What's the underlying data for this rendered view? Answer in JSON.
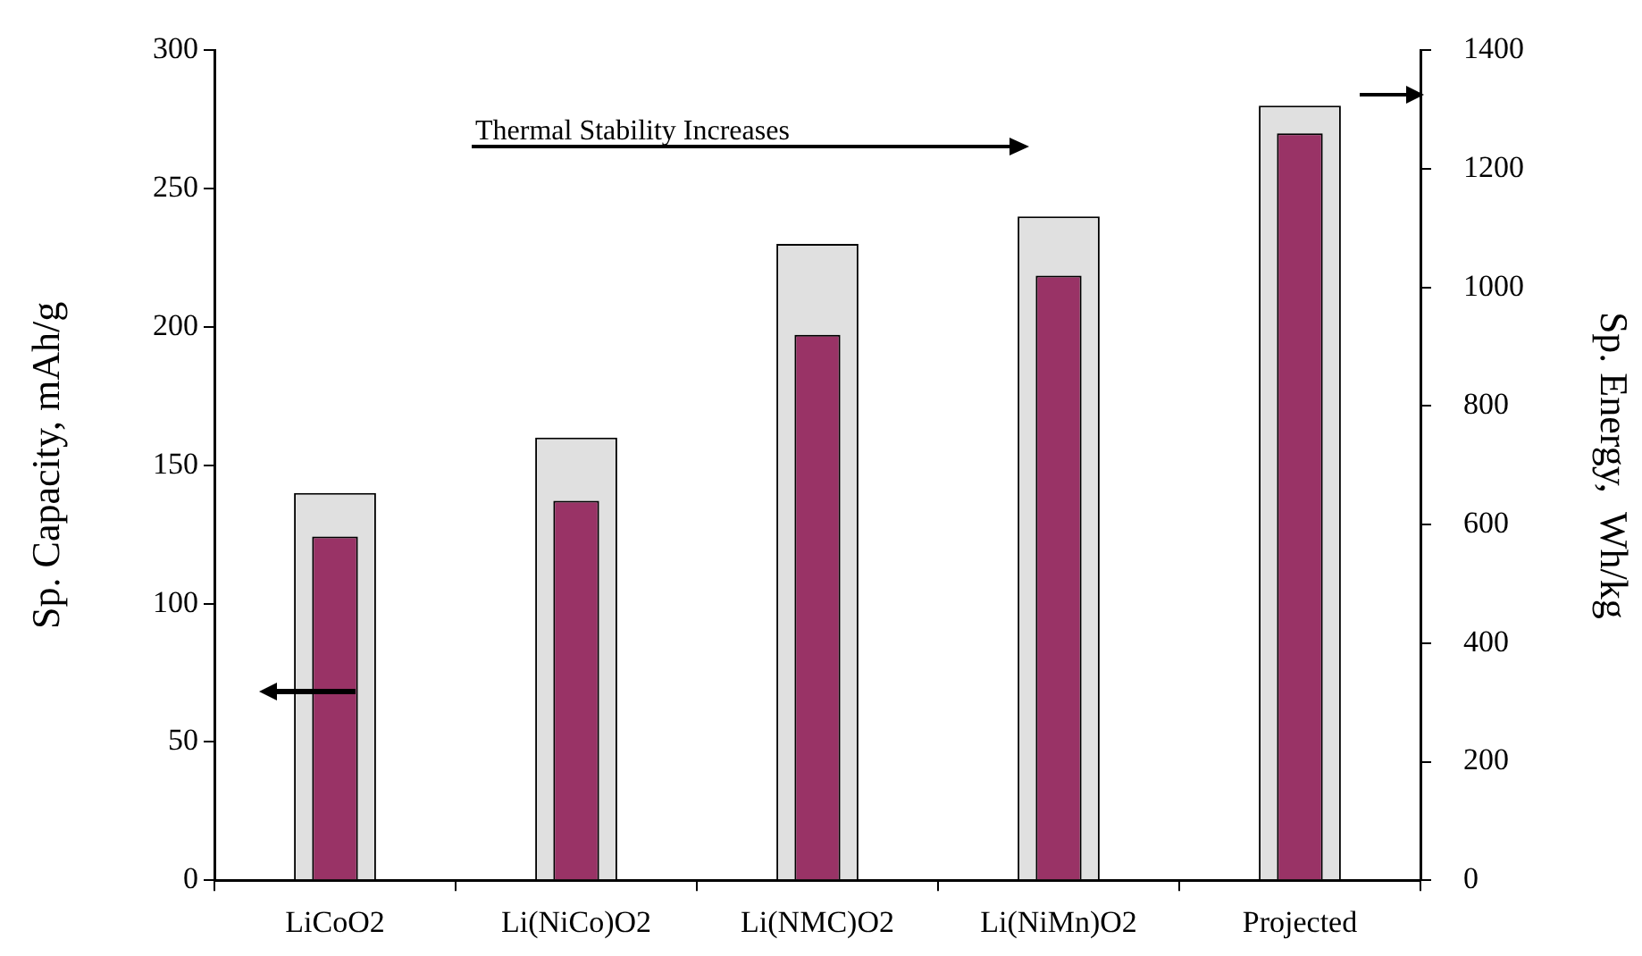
{
  "chart_data": {
    "type": "bar",
    "categories": [
      "LiCoO2",
      "Li(NiCo)O2",
      "Li(NMC)O2",
      "Li(NiMn)O2",
      "Projected"
    ],
    "series": [
      {
        "color": "#e0e0e0",
        "values": [
          140,
          160,
          230,
          240,
          280
        ]
      },
      {
        "color": "#993366",
        "axis": "y2",
        "values": [
          580,
          640,
          920,
          1020,
          1260
        ]
      }
    ],
    "ylabel": "Sp. Capacity, mAh/g",
    "y2label": "Sp. Energy,  Wh/kg",
    "ylim": [
      0,
      300
    ],
    "yticks": [
      0,
      50,
      100,
      150,
      200,
      250,
      300
    ],
    "y2lim": [
      0,
      1400
    ],
    "y2ticks": [
      0,
      200,
      400,
      600,
      800,
      1000,
      1200,
      1400
    ],
    "annotations": [
      "Thermal Stability Increases"
    ],
    "grid": false,
    "legend": false
  }
}
